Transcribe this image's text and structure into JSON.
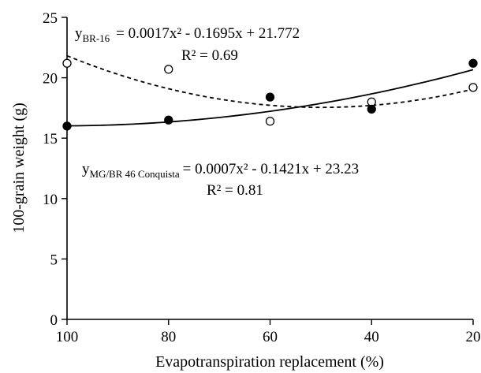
{
  "chart_data": {
    "type": "scatter",
    "title": "",
    "xlabel": "Evapotranspiration replacement (%)",
    "ylabel": "100-grain weight (g)",
    "xlim": [
      100,
      20
    ],
    "x_reversed": true,
    "ylim": [
      0,
      25
    ],
    "x_ticks": [
      100,
      80,
      60,
      40,
      20
    ],
    "y_ticks": [
      0,
      5,
      10,
      15,
      20,
      25
    ],
    "x_tick_labels": [
      "100",
      "80",
      "60",
      "40",
      "20"
    ],
    "y_tick_labels": [
      "0",
      "5",
      "10",
      "15",
      "20",
      "25"
    ],
    "grid": false,
    "series": [
      {
        "name": "BR-16",
        "marker": "open-circle",
        "line": "dashed",
        "x": [
          100,
          80,
          60,
          40,
          20
        ],
        "y": [
          21.2,
          20.7,
          16.4,
          18.0,
          19.2
        ],
        "fit": {
          "a": 0.0017,
          "b": -0.1695,
          "c": 21.772
        },
        "equation_prefix": "y",
        "equation_subscript": "BR-16",
        "equation_rhs": "= 0.0017x² - 0.1695x + 21.772",
        "r2_label": "R² = 0.69"
      },
      {
        "name": "MG/BR 46 Conquista",
        "marker": "filled-circle",
        "line": "solid",
        "x": [
          100,
          80,
          60,
          40,
          20
        ],
        "y": [
          16.0,
          16.5,
          18.4,
          17.4,
          21.2
        ],
        "fit": {
          "a": 0.0007,
          "b": -0.1421,
          "c": 23.23
        },
        "equation_prefix": "y",
        "equation_subscript": "MG/BR 46 Conquista",
        "equation_rhs": "= 0.0007x² - 0.1421x + 23.23",
        "r2_label": "R² = 0.81"
      }
    ]
  }
}
